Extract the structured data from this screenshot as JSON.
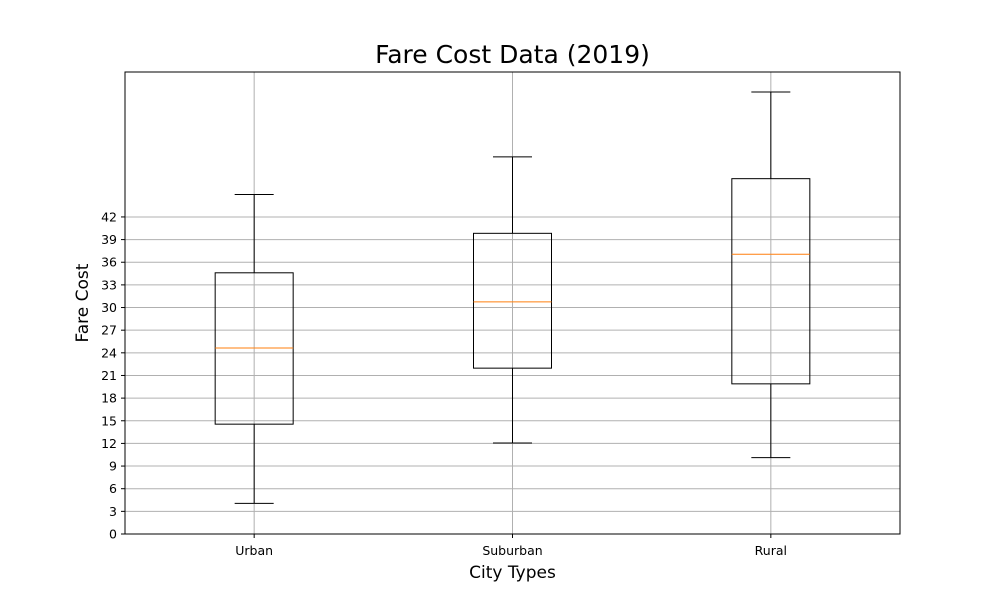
{
  "chart_data": {
    "type": "box",
    "title": "Fare Cost Data (2019)",
    "xlabel": "City Types",
    "ylabel": "Fare Cost",
    "ylim": [
      0,
      61.2
    ],
    "yticks": [
      0,
      3,
      6,
      9,
      12,
      15,
      18,
      21,
      24,
      27,
      30,
      33,
      36,
      39,
      42
    ],
    "grid": true,
    "categories": [
      "Urban",
      "Suburban",
      "Rural"
    ],
    "boxes": [
      {
        "name": "Urban",
        "whisker_low": 4.05,
        "q1": 14.55,
        "median": 24.64,
        "q3": 34.6,
        "whisker_high": 44.97
      },
      {
        "name": "Suburban",
        "whisker_low": 12.05,
        "q1": 21.97,
        "median": 30.75,
        "q3": 39.83,
        "whisker_high": 49.96
      },
      {
        "name": "Rural",
        "whisker_low": 10.11,
        "q1": 19.89,
        "median": 37.05,
        "q3": 47.07,
        "whisker_high": 58.55
      }
    ],
    "colors": {
      "box": "#000000",
      "median": "#ff7f0e",
      "grid": "#b0b0b0"
    }
  }
}
